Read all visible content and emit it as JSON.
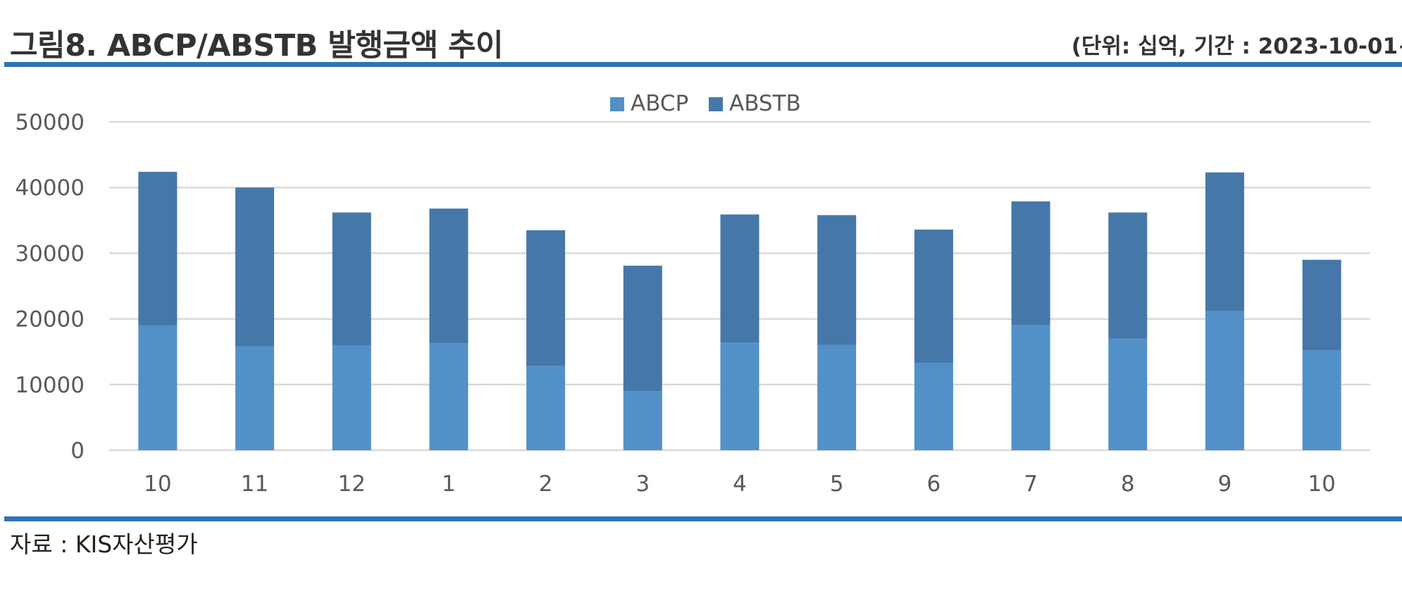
{
  "header": {
    "title": "그림8. ABCP/ABSTB 발행금액 추이",
    "unit_note": "(단위: 십억, 기간 : 2023-10-01~"
  },
  "footer": {
    "source": "자료 : KIS자산평가"
  },
  "colors": {
    "abcp": "#5291c8",
    "abstb": "#4578a8",
    "rule": "#2e74b5",
    "grid": "#d9d9d9",
    "text": "#595959"
  },
  "chart_data": {
    "type": "bar",
    "stacked": true,
    "title": "",
    "xlabel": "",
    "ylabel": "",
    "categories": [
      "10",
      "11",
      "12",
      "1",
      "2",
      "3",
      "4",
      "5",
      "6",
      "7",
      "8",
      "9",
      "10"
    ],
    "series": [
      {
        "name": "ABCP",
        "values": [
          19000,
          15800,
          15900,
          16300,
          12800,
          9000,
          16400,
          16000,
          13300,
          19100,
          17000,
          21200,
          15200
        ]
      },
      {
        "name": "ABSTB",
        "values": [
          23400,
          24200,
          20300,
          20500,
          20700,
          19100,
          19500,
          19800,
          20300,
          18800,
          19200,
          21100,
          13800
        ]
      }
    ],
    "ylim": [
      0,
      50000
    ],
    "yticks": [
      "0",
      "10000",
      "20000",
      "30000",
      "40000",
      "50000"
    ],
    "grid": true,
    "legend": "top-center"
  }
}
